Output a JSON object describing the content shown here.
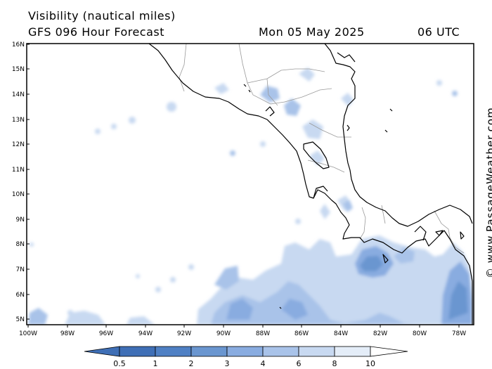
{
  "header": {
    "title": "Visibility (nautical miles)",
    "subtitle": "GFS 096 Hour Forecast",
    "valid_date": "Mon 05 May 2025",
    "valid_time": "06 UTC"
  },
  "credit": "© www.PassageWeather.com",
  "map": {
    "lat_labels": [
      "16N",
      "15N",
      "14N",
      "13N",
      "12N",
      "11N",
      "10N",
      "9N",
      "8N",
      "7N",
      "6N",
      "5N"
    ],
    "lon_labels": [
      "100W",
      "98W",
      "96W",
      "94W",
      "92W",
      "90W",
      "88W",
      "86W",
      "84W",
      "82W",
      "80W",
      "78W"
    ],
    "land_color": "#ffffff",
    "coast_color": "#000000",
    "border_color": "#9a9a9a"
  },
  "colorbar": {
    "labels": [
      "0.5",
      "1",
      "2",
      "3",
      "4",
      "6",
      "8",
      "10"
    ],
    "colors": [
      "#3f6fb6",
      "#4f80c4",
      "#6a96d0",
      "#89ace0",
      "#a9c3e9",
      "#c8d9f1",
      "#e4edf8",
      "#ffffff"
    ],
    "units": "nautical miles"
  }
}
